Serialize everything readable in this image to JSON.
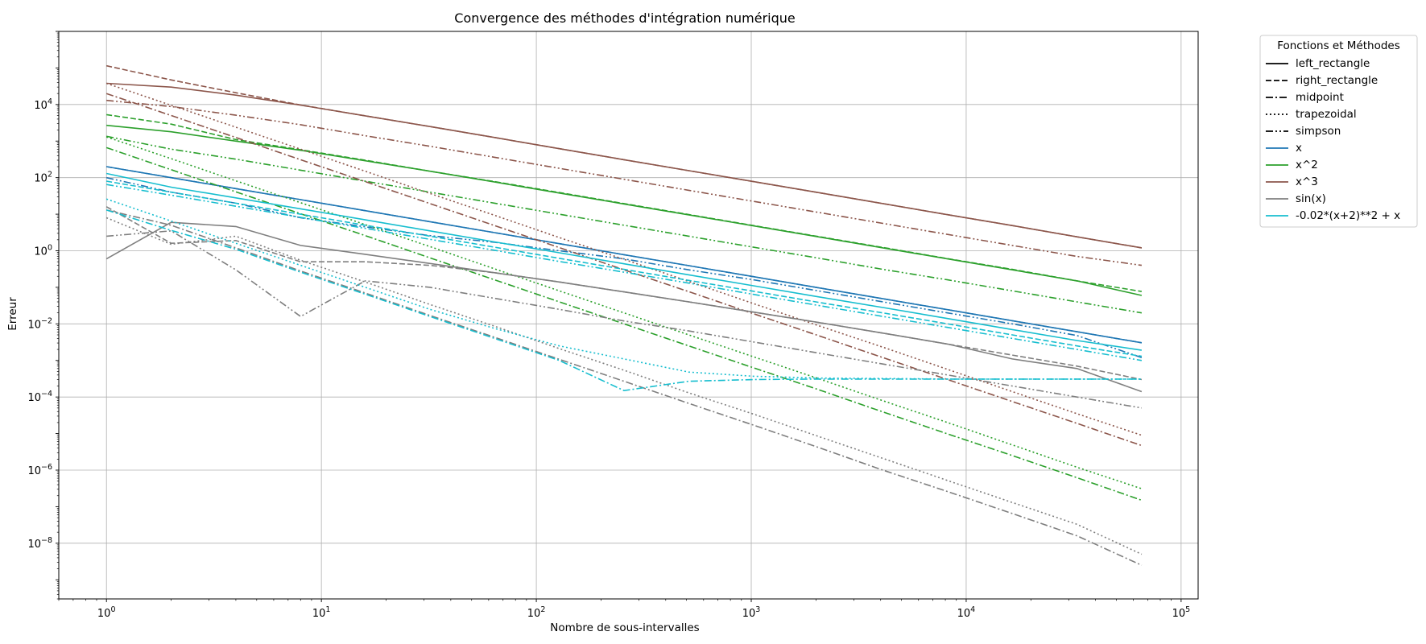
{
  "chart_data": {
    "type": "line",
    "title": "Convergence des méthodes d'intégration numérique",
    "xlabel": "Nombre de sous-intervalles",
    "ylabel": "Erreur",
    "xscale": "log",
    "yscale": "log",
    "xlim": [
      0.6,
      120000
    ],
    "ylim": [
      3e-10,
      1000000.0
    ],
    "grid": true,
    "x": [
      1,
      2,
      4,
      8,
      16,
      32,
      64,
      128,
      256,
      512,
      1024,
      2048,
      4096,
      8192,
      16384,
      32768,
      65536
    ],
    "xticks": [
      {
        "value": 1,
        "base": "10",
        "exp": "0"
      },
      {
        "value": 10,
        "base": "10",
        "exp": "1"
      },
      {
        "value": 100,
        "base": "10",
        "exp": "2"
      },
      {
        "value": 1000,
        "base": "10",
        "exp": "3"
      },
      {
        "value": 10000,
        "base": "10",
        "exp": "4"
      },
      {
        "value": 100000,
        "base": "10",
        "exp": "5"
      }
    ],
    "yticks": [
      {
        "value": 1e-08,
        "base": "10",
        "exp": "−8"
      },
      {
        "value": 1e-06,
        "base": "10",
        "exp": "−6"
      },
      {
        "value": 0.0001,
        "base": "10",
        "exp": "−4"
      },
      {
        "value": 0.01,
        "base": "10",
        "exp": "−2"
      },
      {
        "value": 1,
        "base": "10",
        "exp": "0"
      },
      {
        "value": 100,
        "base": "10",
        "exp": "2"
      },
      {
        "value": 10000,
        "base": "10",
        "exp": "4"
      }
    ],
    "legend": {
      "title": "Fonctions et Méthodes",
      "placement": "outside-upper-right",
      "methods": [
        {
          "label": "left_rectangle",
          "style": "solid"
        },
        {
          "label": "right_rectangle",
          "style": "dashed"
        },
        {
          "label": "midpoint",
          "style": "dashdot"
        },
        {
          "label": "trapezoidal",
          "style": "dotted"
        },
        {
          "label": "simpson",
          "style": "dashdotdot"
        }
      ],
      "functions": [
        {
          "label": "x",
          "color": "#1f77b4"
        },
        {
          "label": "x^2",
          "color": "#2ca02c"
        },
        {
          "label": "x^3",
          "color": "#8c564b"
        },
        {
          "label": "sin(x)",
          "color": "#7f7f7f"
        },
        {
          "label": "-0.02*(x+2)**2 + x",
          "color": "#17becf"
        }
      ]
    },
    "series": [
      {
        "function": "x",
        "method": "left_rectangle",
        "color": "#1f77b4",
        "style": "solid",
        "y": [
          200,
          100,
          50,
          25,
          12.5,
          6.25,
          3.125,
          1.5625,
          0.78125,
          0.390625,
          0.1953,
          0.0977,
          0.0488,
          0.0244,
          0.0122,
          0.0061,
          0.00305
        ]
      },
      {
        "function": "x",
        "method": "right_rectangle",
        "color": "#1f77b4",
        "style": "dashed",
        "y": [
          200,
          100,
          50,
          25,
          12.5,
          6.25,
          3.125,
          1.5625,
          0.78125,
          0.390625,
          0.1953,
          0.0977,
          0.0488,
          0.0244,
          0.0122,
          0.0061,
          0.00305
        ]
      },
      {
        "function": "x",
        "method": "simpson",
        "color": "#1f77b4",
        "style": "dashdotdot",
        "y": [
          100,
          40,
          20,
          8,
          4.5,
          2.6,
          1.7,
          1.0,
          0.6,
          0.3,
          0.16,
          0.08,
          0.04,
          0.02,
          0.01,
          0.0048,
          0.0012
        ]
      },
      {
        "function": "x^2",
        "method": "left_rectangle",
        "color": "#2ca02c",
        "style": "solid",
        "y": [
          2700,
          1800,
          1000,
          560,
          290,
          150,
          76,
          38,
          19,
          9.6,
          4.8,
          2.4,
          1.2,
          0.6,
          0.3,
          0.15,
          0.06
        ]
      },
      {
        "function": "x^2",
        "method": "right_rectangle",
        "color": "#2ca02c",
        "style": "dashed",
        "y": [
          5300,
          2900,
          1100,
          580,
          300,
          150,
          78,
          39,
          19.5,
          9.8,
          4.9,
          2.45,
          1.23,
          0.61,
          0.31,
          0.15,
          0.077
        ]
      },
      {
        "function": "x^2",
        "method": "midpoint",
        "color": "#2ca02c",
        "style": "dashdot",
        "y": [
          660,
          165,
          41,
          10.3,
          2.6,
          0.64,
          0.16,
          0.04,
          0.01,
          0.0025,
          0.00063,
          0.00016,
          3.9e-05,
          9.8e-06,
          2.5e-06,
          6.2e-07,
          1.5e-07
        ]
      },
      {
        "function": "x^2",
        "method": "trapezoidal",
        "color": "#2ca02c",
        "style": "dotted",
        "y": [
          1300,
          330,
          82,
          20.6,
          5.2,
          1.3,
          0.32,
          0.08,
          0.02,
          0.005,
          0.00126,
          0.00032,
          7.9e-05,
          2e-05,
          4.9e-06,
          1.2e-06,
          3.1e-07
        ]
      },
      {
        "function": "x^2",
        "method": "simpson",
        "color": "#2ca02c",
        "style": "dashdotdot",
        "y": [
          1350,
          600,
          320,
          160,
          80,
          40,
          20,
          10,
          5,
          2.5,
          1.25,
          0.63,
          0.31,
          0.16,
          0.08,
          0.04,
          0.02
        ]
      },
      {
        "function": "x^3",
        "method": "left_rectangle",
        "color": "#8c564b",
        "style": "solid",
        "y": [
          38000,
          30000,
          18000,
          9600,
          4900,
          2500,
          1250,
          620,
          310,
          155,
          78,
          39,
          19.5,
          9.7,
          4.9,
          2.4,
          1.2
        ]
      },
      {
        "function": "x^3",
        "method": "right_rectangle",
        "color": "#8c564b",
        "style": "dashed",
        "y": [
          115000,
          47000,
          21000,
          9700,
          4900,
          2500,
          1250,
          620,
          310,
          155,
          78,
          39,
          19.5,
          9.7,
          4.9,
          2.4,
          1.2
        ]
      },
      {
        "function": "x^3",
        "method": "midpoint",
        "color": "#8c564b",
        "style": "dashdot",
        "y": [
          20000,
          5000,
          1250,
          310,
          78,
          19.5,
          4.9,
          1.22,
          0.3,
          0.076,
          0.019,
          0.0048,
          0.0012,
          0.0003,
          7.5e-05,
          1.9e-05,
          4.7e-06
        ]
      },
      {
        "function": "x^3",
        "method": "trapezoidal",
        "color": "#8c564b",
        "style": "dotted",
        "y": [
          38000,
          9500,
          2400,
          600,
          150,
          37,
          9.3,
          2.3,
          0.58,
          0.145,
          0.036,
          0.009,
          0.0023,
          0.00057,
          0.00014,
          3.5e-05,
          9e-06
        ]
      },
      {
        "function": "x^3",
        "method": "simpson",
        "color": "#8c564b",
        "style": "dashdotdot",
        "y": [
          13000,
          8800,
          5100,
          2800,
          1400,
          720,
          360,
          180,
          90,
          45,
          22.5,
          11.2,
          5.6,
          2.8,
          1.4,
          0.7,
          0.4
        ]
      },
      {
        "function": "sin(x)",
        "method": "left_rectangle",
        "color": "#7f7f7f",
        "style": "solid",
        "y": [
          0.6,
          6,
          4.6,
          1.4,
          0.8,
          0.45,
          0.25,
          0.14,
          0.075,
          0.04,
          0.021,
          0.011,
          0.0056,
          0.0028,
          0.0011,
          0.0006,
          0.00014
        ]
      },
      {
        "function": "sin(x)",
        "method": "right_rectangle",
        "color": "#7f7f7f",
        "style": "dashed",
        "y": [
          16,
          1.6,
          1.9,
          0.5,
          0.5,
          0.4,
          0.25,
          0.14,
          0.075,
          0.04,
          0.021,
          0.011,
          0.0056,
          0.0028,
          0.0014,
          0.0007,
          0.0003
        ]
      },
      {
        "function": "sin(x)",
        "method": "midpoint",
        "color": "#7f7f7f",
        "style": "dashdot",
        "y": [
          13,
          5,
          1.2,
          0.28,
          0.07,
          0.017,
          0.0043,
          0.00107,
          0.00027,
          6.7e-05,
          1.7e-05,
          4.2e-06,
          1e-06,
          2.6e-07,
          6.5e-08,
          1.6e-08,
          2.5e-09
        ]
      },
      {
        "function": "sin(x)",
        "method": "trapezoidal",
        "color": "#7f7f7f",
        "style": "dotted",
        "y": [
          8,
          1.5,
          2.5,
          0.55,
          0.14,
          0.034,
          0.0086,
          0.0021,
          0.00054,
          0.00013,
          3.4e-05,
          8.4e-06,
          2.1e-06,
          5.2e-07,
          1.3e-07,
          3.3e-08,
          5e-09
        ]
      },
      {
        "function": "sin(x)",
        "method": "simpson",
        "color": "#7f7f7f",
        "style": "dashdotdot",
        "y": [
          2.5,
          3.5,
          0.3,
          0.016,
          0.15,
          0.1,
          0.05,
          0.025,
          0.012,
          0.0064,
          0.0032,
          0.0016,
          0.0008,
          0.0004,
          0.0002,
          0.0001,
          5e-05
        ]
      },
      {
        "function": "-0.02*(x+2)**2 + x",
        "method": "left_rectangle",
        "color": "#17becf",
        "style": "solid",
        "y": [
          130,
          55,
          28,
          14,
          7,
          3.5,
          1.75,
          0.88,
          0.44,
          0.22,
          0.11,
          0.055,
          0.028,
          0.014,
          0.007,
          0.0035,
          0.0019
        ]
      },
      {
        "function": "-0.02*(x+2)**2 + x",
        "method": "right_rectangle",
        "color": "#17becf",
        "style": "dashed",
        "y": [
          80,
          40,
          20,
          10,
          5,
          2.5,
          1.25,
          0.62,
          0.31,
          0.155,
          0.078,
          0.039,
          0.02,
          0.01,
          0.005,
          0.0025,
          0.0013
        ]
      },
      {
        "function": "-0.02*(x+2)**2 + x",
        "method": "midpoint",
        "color": "#17becf",
        "style": "dashdot",
        "y": [
          13,
          3.6,
          1.1,
          0.26,
          0.065,
          0.016,
          0.004,
          0.001,
          0.00015,
          0.00027,
          0.0003,
          0.00031,
          0.00031,
          0.00031,
          0.00031,
          0.00031,
          0.00031
        ]
      },
      {
        "function": "-0.02*(x+2)**2 + x",
        "method": "trapezoidal",
        "color": "#17becf",
        "style": "dotted",
        "y": [
          26,
          6.5,
          1.6,
          0.4,
          0.1,
          0.025,
          0.0075,
          0.0025,
          0.0011,
          0.00048,
          0.00037,
          0.00033,
          0.00032,
          0.00031,
          0.00031,
          0.00031,
          0.00031
        ]
      },
      {
        "function": "-0.02*(x+2)**2 + x",
        "method": "simpson",
        "color": "#17becf",
        "style": "dashdotdot",
        "y": [
          65,
          33,
          16.5,
          8.2,
          4.1,
          2.05,
          1.03,
          0.51,
          0.26,
          0.13,
          0.064,
          0.032,
          0.016,
          0.008,
          0.004,
          0.002,
          0.001
        ]
      }
    ]
  }
}
